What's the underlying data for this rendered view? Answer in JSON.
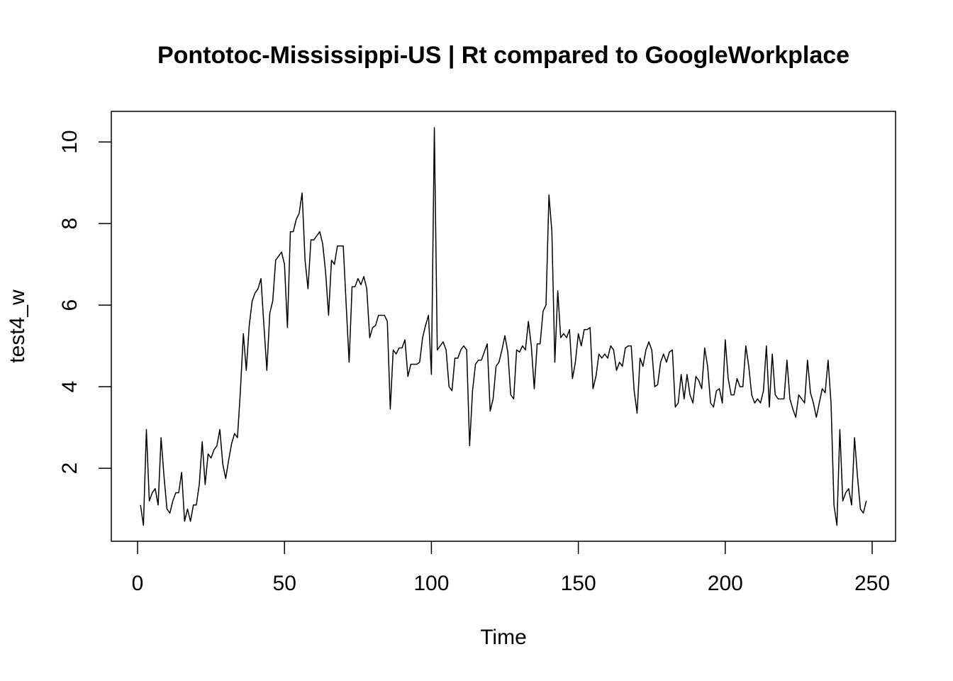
{
  "chart_data": {
    "type": "line",
    "title": "Pontotoc-Mississippi-US | Rt compared to GoogleWorkplace",
    "xlabel": "Time",
    "ylabel": "test4_w",
    "x": [
      1,
      2,
      3,
      4,
      5,
      6,
      7,
      8,
      9,
      10,
      11,
      12,
      13,
      14,
      15,
      16,
      17,
      18,
      19,
      20,
      21,
      22,
      23,
      24,
      25,
      26,
      27,
      28,
      29,
      30,
      31,
      32,
      33,
      34,
      35,
      36,
      37,
      38,
      39,
      40,
      41,
      42,
      43,
      44,
      45,
      46,
      47,
      48,
      49,
      50,
      51,
      52,
      53,
      54,
      55,
      56,
      57,
      58,
      59,
      60,
      61,
      62,
      63,
      64,
      65,
      66,
      67,
      68,
      69,
      70,
      71,
      72,
      73,
      74,
      75,
      76,
      77,
      78,
      79,
      80,
      81,
      82,
      83,
      84,
      85,
      86,
      87,
      88,
      89,
      90,
      91,
      92,
      93,
      94,
      95,
      96,
      97,
      98,
      99,
      100,
      101,
      102,
      103,
      104,
      105,
      106,
      107,
      108,
      109,
      110,
      111,
      112,
      113,
      114,
      115,
      116,
      117,
      118,
      119,
      120,
      121,
      122,
      123,
      124,
      125,
      126,
      127,
      128,
      129,
      130,
      131,
      132,
      133,
      134,
      135,
      136,
      137,
      138,
      139,
      140,
      141,
      142,
      143,
      144,
      145,
      146,
      147,
      148,
      149,
      150,
      151,
      152,
      153,
      154,
      155,
      156,
      157,
      158,
      159,
      160,
      161,
      162,
      163,
      164,
      165,
      166,
      167,
      168,
      169,
      170,
      171,
      172,
      173,
      174,
      175,
      176,
      177,
      178,
      179,
      180,
      181,
      182,
      183,
      184,
      185,
      186,
      187,
      188,
      189,
      190,
      191,
      192,
      193,
      194,
      195,
      196,
      197,
      198,
      199,
      200,
      201,
      202,
      203,
      204,
      205,
      206,
      207,
      208,
      209,
      210,
      211,
      212,
      213,
      214,
      215,
      216,
      217,
      218,
      219,
      220,
      221,
      222,
      223,
      224,
      225,
      226,
      227,
      228,
      229,
      230,
      231,
      232,
      233,
      234,
      235,
      236,
      237,
      238,
      239,
      240,
      241,
      242,
      243,
      244,
      245,
      246,
      247,
      248
    ],
    "series": [
      {
        "name": "test4_w",
        "color": "#000000",
        "values": [
          1.1,
          0.6,
          2.95,
          1.2,
          1.4,
          1.5,
          1.1,
          2.75,
          1.8,
          1.0,
          0.9,
          1.2,
          1.4,
          1.4,
          1.9,
          0.7,
          1.0,
          0.7,
          1.1,
          1.1,
          1.6,
          2.65,
          1.6,
          2.35,
          2.25,
          2.45,
          2.55,
          2.95,
          2.1,
          1.75,
          2.2,
          2.6,
          2.85,
          2.75,
          3.9,
          5.3,
          4.4,
          5.5,
          6.1,
          6.3,
          6.4,
          6.65,
          5.5,
          4.4,
          5.8,
          6.1,
          7.1,
          7.2,
          7.3,
          7.0,
          5.45,
          7.8,
          7.8,
          8.1,
          8.25,
          8.75,
          7.1,
          6.4,
          7.6,
          7.6,
          7.7,
          7.8,
          7.5,
          6.8,
          5.75,
          7.1,
          7.0,
          7.45,
          7.45,
          7.45,
          6.0,
          4.6,
          6.45,
          6.45,
          6.65,
          6.5,
          6.7,
          6.4,
          5.2,
          5.45,
          5.5,
          5.75,
          5.75,
          5.75,
          5.6,
          3.45,
          4.9,
          4.8,
          4.95,
          4.95,
          5.15,
          4.25,
          4.55,
          4.55,
          4.55,
          4.6,
          5.2,
          5.5,
          5.75,
          4.3,
          10.35,
          4.9,
          5.0,
          5.1,
          4.9,
          4.0,
          3.9,
          4.7,
          4.7,
          4.9,
          5.0,
          4.9,
          2.55,
          3.9,
          4.55,
          4.65,
          4.65,
          4.85,
          5.05,
          3.4,
          3.7,
          4.5,
          4.6,
          4.9,
          5.25,
          4.85,
          3.8,
          3.7,
          4.9,
          4.85,
          5.0,
          4.9,
          5.6,
          5.0,
          3.95,
          5.05,
          5.05,
          5.85,
          6.0,
          8.7,
          7.8,
          4.6,
          6.35,
          5.2,
          5.3,
          5.2,
          5.4,
          4.2,
          4.6,
          5.3,
          5.0,
          5.4,
          5.4,
          5.45,
          3.95,
          4.25,
          4.8,
          4.7,
          4.8,
          4.7,
          5.0,
          4.9,
          4.4,
          4.6,
          4.5,
          4.95,
          5.0,
          5.0,
          3.9,
          3.35,
          4.7,
          4.5,
          4.9,
          5.1,
          4.9,
          4.0,
          4.05,
          4.6,
          4.8,
          4.6,
          4.85,
          4.9,
          3.5,
          3.6,
          4.3,
          3.7,
          4.3,
          3.8,
          3.6,
          4.25,
          4.15,
          3.95,
          4.95,
          4.5,
          3.6,
          3.5,
          3.9,
          3.95,
          3.6,
          5.15,
          4.2,
          3.8,
          3.8,
          4.2,
          4.0,
          4.0,
          5.0,
          4.5,
          3.8,
          3.6,
          3.7,
          3.6,
          3.9,
          5.0,
          3.5,
          4.8,
          3.8,
          3.7,
          3.7,
          3.7,
          4.65,
          3.7,
          3.45,
          3.25,
          3.8,
          3.7,
          3.6,
          4.65,
          3.85,
          3.6,
          3.25,
          3.6,
          3.95,
          3.85,
          4.65,
          3.6,
          1.1,
          0.6,
          2.95,
          1.2,
          1.4,
          1.5,
          1.1,
          2.75,
          1.8,
          1.0,
          0.9,
          1.2
        ]
      }
    ],
    "xlim": [
      -8.93,
      257.96
    ],
    "ylim": [
      0.21,
      10.75
    ],
    "xticks": [
      0,
      50,
      100,
      150,
      200,
      250
    ],
    "yticks": [
      2,
      4,
      6,
      8,
      10
    ]
  }
}
